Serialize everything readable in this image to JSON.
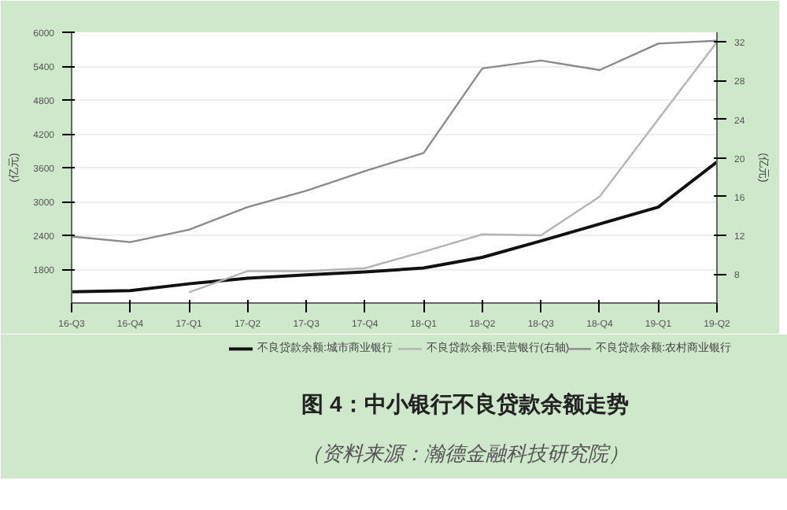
{
  "chart_data": {
    "type": "line",
    "title": "图 4：中小银行不良贷款余额走势",
    "annotations": [
      "（资料来源：瀚德金融科技研究院）"
    ],
    "ylabel": "(亿元)",
    "y2label": "(亿元)",
    "categories": [
      "16-Q3",
      "16-Q4",
      "17-Q1",
      "17-Q2",
      "17-Q3",
      "17-Q4",
      "18-Q1",
      "18-Q2",
      "18-Q3",
      "18-Q4",
      "19-Q1",
      "19-Q2"
    ],
    "ylim": [
      1200,
      6000
    ],
    "yticks": [
      1800,
      2400,
      3000,
      3600,
      4200,
      4800,
      5400,
      6000
    ],
    "y2lim": [
      5,
      33
    ],
    "y2ticks": [
      8,
      12,
      16,
      20,
      24,
      28,
      32
    ],
    "grid": "y",
    "legend": "bottom",
    "marker": "none",
    "series": [
      {
        "name": "不良贷款余额:城市商业银行",
        "color": "#111111",
        "values": [
          1400,
          1420,
          1540,
          1640,
          1700,
          1750,
          1820,
          2010,
          2300,
          2600,
          2900,
          3700
        ]
      },
      {
        "name": "不良贷款余额:民营银行(右轴)",
        "color": "#b4b4b4",
        "axis": "y2",
        "values": [
          null,
          null,
          6.1,
          8.3,
          8.3,
          8.6,
          10.3,
          12.1,
          12,
          16,
          24,
          32
        ]
      },
      {
        "name": "不良贷款余额:农村商业银行",
        "color": "#8a8a8a",
        "values": [
          2380,
          2280,
          2500,
          2900,
          3190,
          3540,
          3860,
          5360,
          5500,
          5330,
          5800,
          5850
        ]
      }
    ]
  }
}
